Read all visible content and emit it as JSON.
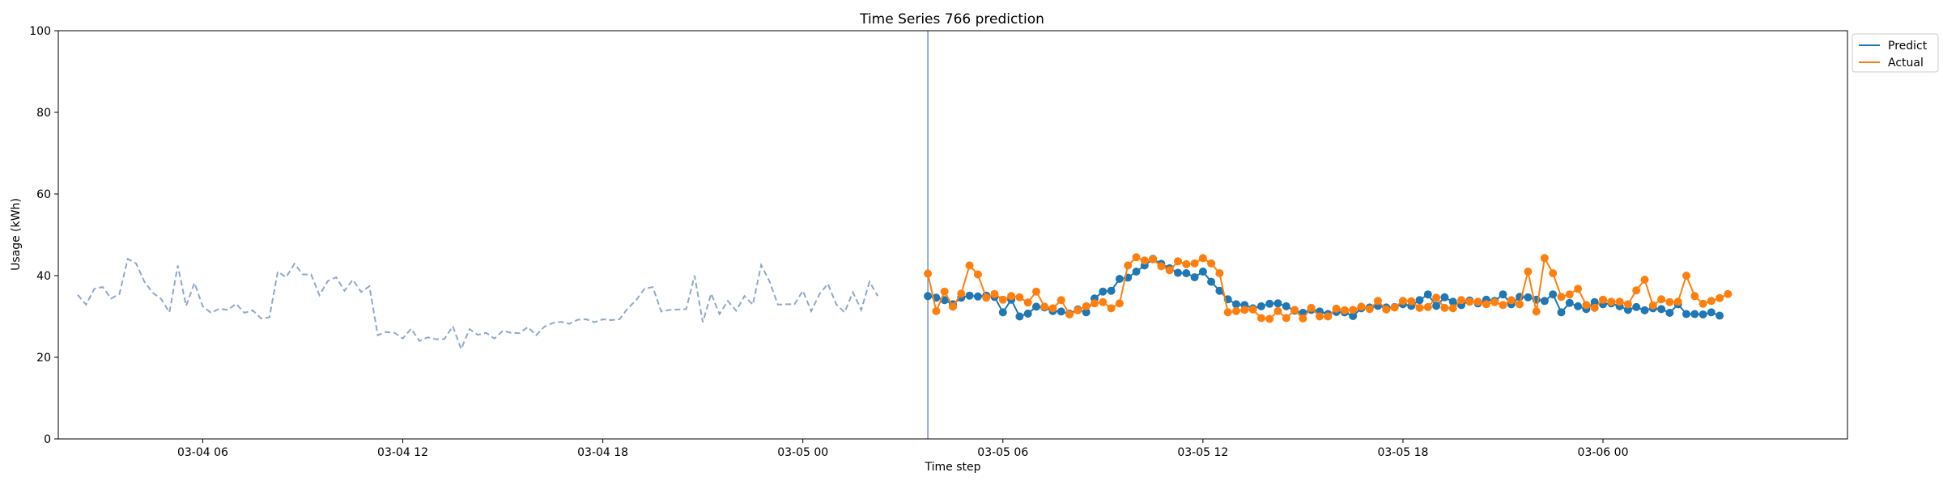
{
  "chart_data": {
    "type": "line",
    "title": "Time Series 766 prediction",
    "xlabel": "Time step",
    "ylabel": "Usage (kWh)",
    "ylim": [
      0,
      100
    ],
    "xlim": [
      "2024-03-04T01:40",
      "2024-03-06T07:20"
    ],
    "y_ticks": [
      0,
      20,
      40,
      60,
      80,
      100
    ],
    "x_ticks": [
      {
        "t": "2024-03-04T06:00",
        "label": "03-04 06"
      },
      {
        "t": "2024-03-04T12:00",
        "label": "03-04 12"
      },
      {
        "t": "2024-03-04T18:00",
        "label": "03-04 18"
      },
      {
        "t": "2024-03-05T00:00",
        "label": "03-05 00"
      },
      {
        "t": "2024-03-05T06:00",
        "label": "03-05 06"
      },
      {
        "t": "2024-03-05T12:00",
        "label": "03-05 12"
      },
      {
        "t": "2024-03-05T18:00",
        "label": "03-05 18"
      },
      {
        "t": "2024-03-06T00:00",
        "label": "03-06 00"
      }
    ],
    "grid": false,
    "legend_position": "top-right, outside plot",
    "forecast_start": "2024-03-05T03:45",
    "history": {
      "start": "2024-03-04T02:15",
      "interval_minutes": 15,
      "color": "#8fa8c8",
      "style": "dashed",
      "values": [
        35.3,
        32.9,
        36.8,
        37.2,
        34.4,
        35.5,
        44.1,
        43.0,
        38.5,
        35.8,
        34.3,
        31.0,
        42.5,
        32.6,
        38.2,
        32.5,
        30.9,
        31.9,
        31.6,
        33.1,
        30.9,
        31.5,
        29.5,
        29.8,
        41.0,
        39.6,
        42.9,
        40.3,
        40.3,
        35.2,
        38.7,
        39.6,
        36.3,
        39.0,
        36.0,
        37.4,
        25.4,
        26.2,
        26.0,
        24.6,
        27.0,
        24.0,
        24.9,
        24.4,
        24.5,
        27.6,
        22.0,
        26.9,
        25.5,
        26.0,
        24.6,
        26.5,
        26.0,
        25.9,
        27.4,
        25.4,
        27.5,
        28.4,
        28.7,
        28.2,
        29.2,
        29.3,
        28.6,
        29.3,
        29.1,
        29.3,
        32.0,
        34.0,
        36.8,
        37.2,
        31.2,
        31.6,
        31.7,
        31.8,
        40.0,
        28.6,
        35.6,
        30.6,
        33.8,
        31.4,
        35.0,
        32.9,
        42.6,
        38.6,
        32.9,
        33.0,
        33.0,
        36.3,
        31.3,
        35.5,
        38.0,
        33.0,
        31.0,
        35.9,
        31.6,
        38.5,
        35.0
      ]
    },
    "series": [
      {
        "name": "Predict",
        "color": "#1f77b4",
        "start": "2024-03-05T03:45",
        "interval_minutes": 15,
        "values": [
          35.0,
          34.6,
          34.0,
          33.0,
          34.6,
          35.1,
          34.9,
          35.1,
          34.8,
          31.0,
          34.1,
          30.0,
          30.7,
          32.4,
          32.2,
          31.3,
          31.2,
          30.7,
          31.7,
          31.0,
          34.4,
          36.1,
          36.3,
          39.2,
          39.5,
          41.0,
          42.5,
          44.1,
          42.9,
          41.8,
          40.7,
          40.6,
          39.6,
          41.0,
          38.5,
          36.3,
          34.2,
          33.0,
          32.8,
          32.0,
          32.5,
          33.1,
          33.2,
          32.5,
          31.4,
          30.9,
          31.6,
          31.2,
          30.6,
          31.1,
          31.0,
          30.1,
          32.0,
          32.2,
          32.6,
          32.2,
          32.3,
          33.0,
          32.6,
          34.0,
          35.4,
          32.6,
          34.7,
          33.6,
          32.8,
          33.9,
          33.2,
          34.1,
          33.8,
          35.4,
          33.0,
          34.8,
          34.7,
          34.1,
          33.8,
          35.4,
          31.0,
          33.3,
          32.5,
          31.8,
          33.5,
          33.0,
          33.2,
          32.5,
          31.6,
          32.3,
          31.5,
          32.0,
          31.8,
          30.9,
          33.0,
          30.6,
          30.6,
          30.5,
          31.0,
          30.2
        ]
      },
      {
        "name": "Actual",
        "color": "#ff7f0e",
        "start": "2024-03-05T03:45",
        "interval_minutes": 15,
        "values": [
          40.5,
          31.3,
          36.1,
          32.4,
          35.6,
          42.5,
          40.3,
          34.6,
          35.5,
          34.1,
          35.0,
          34.7,
          33.4,
          36.1,
          32.4,
          32.0,
          34.0,
          30.5,
          31.5,
          32.5,
          33.2,
          33.5,
          32.0,
          33.2,
          42.5,
          44.5,
          43.7,
          44.0,
          42.3,
          41.3,
          43.5,
          42.8,
          43.0,
          44.3,
          43.0,
          40.6,
          31.0,
          31.3,
          31.6,
          31.7,
          29.6,
          29.4,
          31.3,
          29.6,
          31.6,
          29.5,
          32.1,
          30.0,
          30.0,
          31.9,
          31.5,
          31.6,
          32.4,
          31.8,
          33.8,
          31.7,
          32.2,
          33.8,
          33.7,
          32.1,
          32.3,
          34.6,
          32.1,
          32.0,
          34.0,
          33.6,
          33.6,
          33.0,
          33.5,
          32.8,
          34.0,
          33.0,
          41.0,
          31.2,
          44.3,
          40.6,
          34.8,
          35.4,
          36.8,
          32.8,
          32.1,
          34.1,
          33.6,
          33.6,
          33.0,
          36.4,
          39.0,
          32.7,
          34.2,
          33.5,
          33.6,
          40.0,
          35.0,
          33.1,
          33.8,
          34.5,
          35.5
        ]
      }
    ]
  }
}
